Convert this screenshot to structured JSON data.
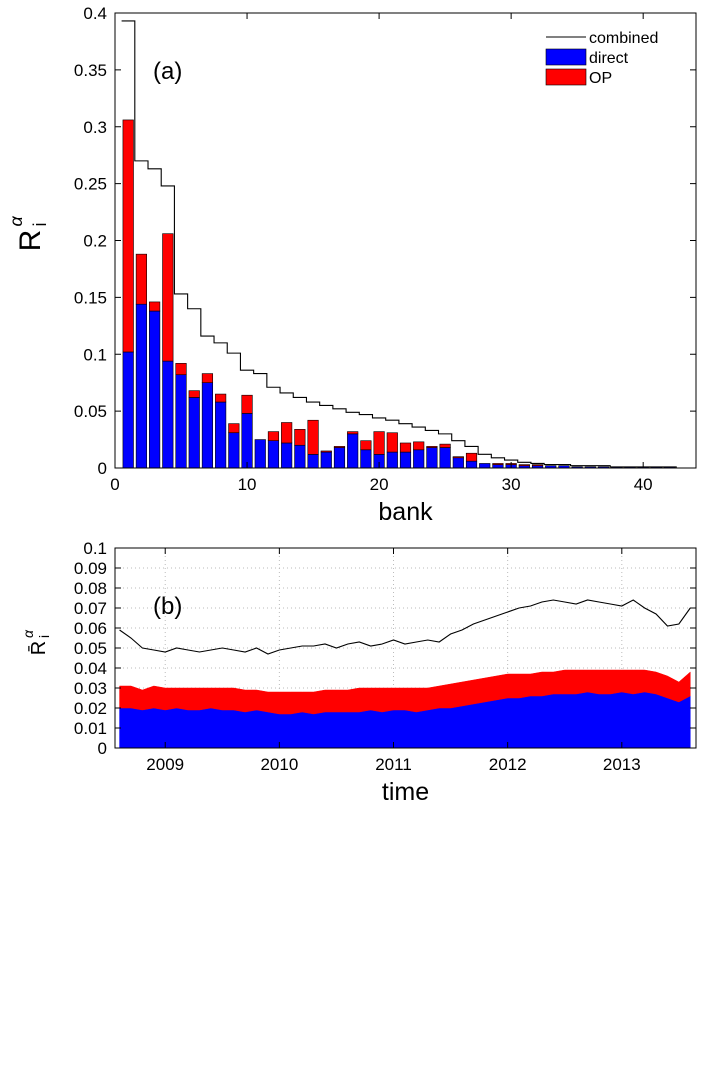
{
  "chart_data": [
    {
      "type": "bar",
      "stacked": true,
      "annotation": "(a)",
      "xlabel": "bank",
      "ylabel": {
        "base": "R",
        "sup": "α",
        "sub": "i"
      },
      "x": [
        1,
        2,
        3,
        4,
        5,
        6,
        7,
        8,
        9,
        10,
        11,
        12,
        13,
        14,
        15,
        16,
        17,
        18,
        19,
        20,
        21,
        22,
        23,
        24,
        25,
        26,
        27,
        28,
        29,
        30,
        31,
        32,
        33,
        34,
        35,
        36,
        37,
        38,
        39,
        40,
        41,
        42
      ],
      "series": [
        {
          "name": "combined",
          "type": "step",
          "color": "#000000",
          "values": [
            0.393,
            0.27,
            0.263,
            0.248,
            0.153,
            0.14,
            0.116,
            0.11,
            0.101,
            0.086,
            0.083,
            0.071,
            0.066,
            0.062,
            0.058,
            0.055,
            0.052,
            0.049,
            0.047,
            0.044,
            0.042,
            0.039,
            0.036,
            0.033,
            0.03,
            0.024,
            0.019,
            0.012,
            0.009,
            0.007,
            0.005,
            0.004,
            0.003,
            0.003,
            0.002,
            0.002,
            0.002,
            0.001,
            0.001,
            0.001,
            0.001,
            0.001
          ]
        },
        {
          "name": "direct",
          "type": "bar",
          "color": "#0000ff",
          "values": [
            0.102,
            0.144,
            0.138,
            0.094,
            0.082,
            0.062,
            0.075,
            0.058,
            0.031,
            0.048,
            0.025,
            0.024,
            0.022,
            0.02,
            0.012,
            0.014,
            0.018,
            0.03,
            0.016,
            0.012,
            0.014,
            0.014,
            0.016,
            0.018,
            0.018,
            0.009,
            0.006,
            0.004,
            0.003,
            0.003,
            0.002,
            0.002,
            0.002,
            0.002,
            0.001,
            0.001,
            0.001,
            0.001,
            0.001,
            0.001,
            0.001,
            0.001
          ]
        },
        {
          "name": "OP",
          "type": "bar",
          "color": "#ff0000",
          "values": [
            0.204,
            0.044,
            0.008,
            0.112,
            0.01,
            0.006,
            0.008,
            0.007,
            0.008,
            0.016,
            0,
            0.008,
            0.018,
            0.014,
            0.03,
            0.001,
            0.001,
            0.002,
            0.008,
            0.02,
            0.017,
            0.008,
            0.007,
            0.001,
            0.003,
            0.001,
            0.007,
            0,
            0.001,
            0.001,
            0.001,
            0.001,
            0,
            0,
            0,
            0,
            0,
            0,
            0,
            0,
            0,
            0
          ]
        }
      ],
      "xlim": [
        0,
        44
      ],
      "xticks": [
        0,
        10,
        20,
        30,
        40
      ],
      "ylim": [
        0,
        0.4
      ],
      "yticks": [
        0,
        0.05,
        0.1,
        0.15,
        0.2,
        0.25,
        0.3,
        0.35,
        0.4
      ],
      "grid": false,
      "legend": "upper right"
    },
    {
      "type": "area",
      "stacked": true,
      "annotation": "(b)",
      "xlabel": "time",
      "ylabel": {
        "base": "R̄",
        "sup": "α",
        "sub": "i"
      },
      "x": [
        2008.6,
        2008.7,
        2008.8,
        2008.9,
        2009.0,
        2009.1,
        2009.2,
        2009.3,
        2009.4,
        2009.5,
        2009.6,
        2009.7,
        2009.8,
        2009.9,
        2010.0,
        2010.1,
        2010.2,
        2010.3,
        2010.4,
        2010.5,
        2010.6,
        2010.7,
        2010.8,
        2010.9,
        2011.0,
        2011.1,
        2011.2,
        2011.3,
        2011.4,
        2011.5,
        2011.6,
        2011.7,
        2011.8,
        2011.9,
        2012.0,
        2012.1,
        2012.2,
        2012.3,
        2012.4,
        2012.5,
        2012.6,
        2012.7,
        2012.8,
        2012.9,
        2013.0,
        2013.1,
        2013.2,
        2013.3,
        2013.4,
        2013.5,
        2013.6
      ],
      "series": [
        {
          "name": "combined",
          "type": "line",
          "color": "#000000",
          "values": [
            0.059,
            0.055,
            0.05,
            0.049,
            0.048,
            0.05,
            0.049,
            0.048,
            0.049,
            0.05,
            0.049,
            0.048,
            0.05,
            0.047,
            0.049,
            0.05,
            0.051,
            0.051,
            0.052,
            0.05,
            0.052,
            0.053,
            0.051,
            0.052,
            0.054,
            0.052,
            0.053,
            0.054,
            0.053,
            0.057,
            0.059,
            0.062,
            0.064,
            0.066,
            0.068,
            0.07,
            0.071,
            0.073,
            0.074,
            0.073,
            0.072,
            0.074,
            0.073,
            0.072,
            0.071,
            0.074,
            0.07,
            0.067,
            0.061,
            0.062,
            0.07
          ]
        },
        {
          "name": "direct",
          "type": "area",
          "color": "#0000ff",
          "values": [
            0.02,
            0.02,
            0.019,
            0.02,
            0.019,
            0.02,
            0.019,
            0.019,
            0.02,
            0.019,
            0.019,
            0.018,
            0.019,
            0.018,
            0.017,
            0.017,
            0.018,
            0.017,
            0.018,
            0.018,
            0.018,
            0.018,
            0.019,
            0.018,
            0.019,
            0.019,
            0.018,
            0.019,
            0.02,
            0.02,
            0.021,
            0.022,
            0.023,
            0.024,
            0.025,
            0.025,
            0.026,
            0.026,
            0.027,
            0.027,
            0.027,
            0.028,
            0.027,
            0.027,
            0.028,
            0.027,
            0.028,
            0.027,
            0.025,
            0.023,
            0.026
          ]
        },
        {
          "name": "OP",
          "type": "area",
          "color": "#ff0000",
          "values": [
            0.011,
            0.011,
            0.01,
            0.011,
            0.011,
            0.01,
            0.011,
            0.011,
            0.01,
            0.011,
            0.011,
            0.011,
            0.01,
            0.01,
            0.011,
            0.011,
            0.01,
            0.011,
            0.011,
            0.011,
            0.011,
            0.012,
            0.011,
            0.012,
            0.011,
            0.011,
            0.012,
            0.011,
            0.011,
            0.012,
            0.012,
            0.012,
            0.012,
            0.012,
            0.012,
            0.012,
            0.011,
            0.012,
            0.011,
            0.012,
            0.012,
            0.011,
            0.012,
            0.012,
            0.011,
            0.012,
            0.011,
            0.011,
            0.011,
            0.01,
            0.012
          ]
        }
      ],
      "xlim": [
        2008.56,
        2013.65
      ],
      "xticks": [
        2009,
        2010,
        2011,
        2012,
        2013
      ],
      "ylim": [
        0,
        0.1
      ],
      "yticks": [
        0,
        0.01,
        0.02,
        0.03,
        0.04,
        0.05,
        0.06,
        0.07,
        0.08,
        0.09,
        0.1
      ],
      "grid": true
    }
  ]
}
